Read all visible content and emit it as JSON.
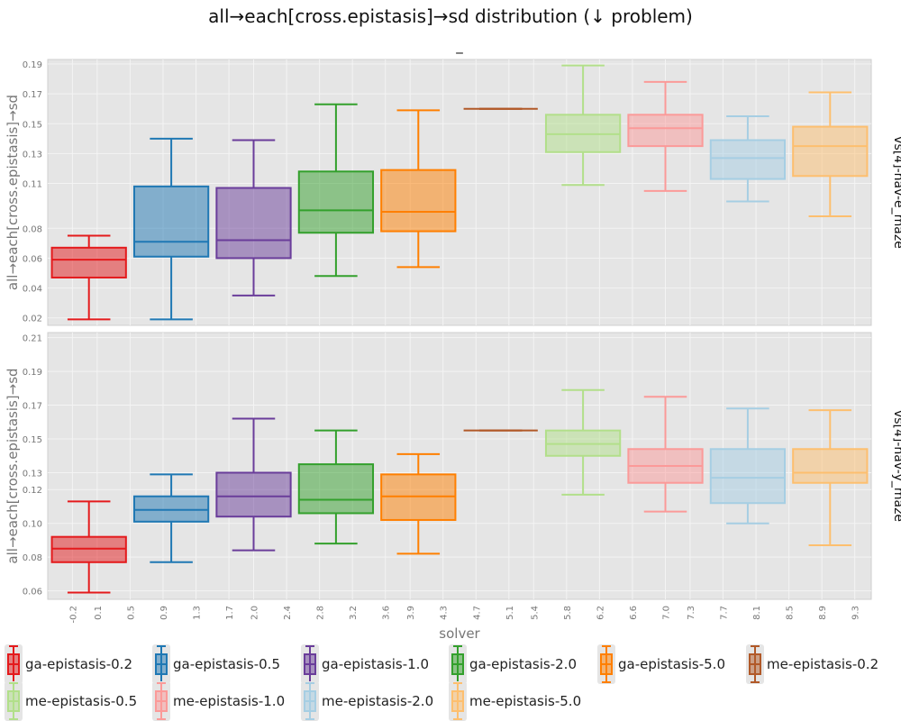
{
  "chart_data": {
    "type": "box",
    "title": "all→each[cross.epistasis]→sd distribution (↓ problem)",
    "subtitle": "_",
    "xlabel": "solver",
    "ylabel": "all→each[cross.epistasis]→sd",
    "x_ticks": [
      "-0.2",
      "0.1",
      "0.5",
      "0.9",
      "1.3",
      "1.7",
      "2.0",
      "2.4",
      "2.8",
      "3.2",
      "3.6",
      "3.9",
      "4.3",
      "4.7",
      "5.1",
      "5.4",
      "5.8",
      "6.2",
      "6.6",
      "7.0",
      "7.3",
      "7.7",
      "8.1",
      "8.5",
      "8.9",
      "9.3"
    ],
    "x_tick_positions": [
      -0.2,
      0.1,
      0.5,
      0.9,
      1.3,
      1.7,
      2.0,
      2.4,
      2.8,
      3.2,
      3.6,
      3.9,
      4.3,
      4.7,
      5.1,
      5.4,
      5.8,
      6.2,
      6.6,
      7.0,
      7.3,
      7.7,
      8.1,
      8.5,
      8.9,
      9.3
    ],
    "xlim": [
      -0.5,
      9.5
    ],
    "grid": true,
    "legend_position": "bottom",
    "series": [
      {
        "name": "ga-epistasis-0.2",
        "color": "#e41a1c"
      },
      {
        "name": "ga-epistasis-0.5",
        "color": "#1f78b4"
      },
      {
        "name": "ga-epistasis-1.0",
        "color": "#6a3d9a"
      },
      {
        "name": "ga-epistasis-2.0",
        "color": "#33a02c"
      },
      {
        "name": "ga-epistasis-5.0",
        "color": "#ff7f00"
      },
      {
        "name": "me-epistasis-0.2",
        "color": "#b15928"
      },
      {
        "name": "me-epistasis-0.5",
        "color": "#b2df8a"
      },
      {
        "name": "me-epistasis-1.0",
        "color": "#fb9a99"
      },
      {
        "name": "me-epistasis-2.0",
        "color": "#a6cee3"
      },
      {
        "name": "me-epistasis-5.0",
        "color": "#fdbf6f"
      }
    ],
    "panels": [
      {
        "facet": "vs[4]-nav-e_maze",
        "ylim": [
          0.015,
          0.193
        ],
        "y_ticks": [
          "0.02",
          "0.04",
          "0.06",
          "0.08",
          "0.11",
          "0.13",
          "0.15",
          "0.17",
          "0.19"
        ],
        "y_tick_values": [
          0.02,
          0.04,
          0.06,
          0.08,
          0.11,
          0.13,
          0.15,
          0.17,
          0.19
        ],
        "boxes": [
          {
            "min": 0.019,
            "q1": 0.047,
            "median": 0.059,
            "q3": 0.067,
            "max": 0.075
          },
          {
            "min": 0.019,
            "q1": 0.061,
            "median": 0.071,
            "q3": 0.108,
            "max": 0.14
          },
          {
            "min": 0.035,
            "q1": 0.06,
            "median": 0.072,
            "q3": 0.107,
            "max": 0.139
          },
          {
            "min": 0.048,
            "q1": 0.077,
            "median": 0.092,
            "q3": 0.118,
            "max": 0.163
          },
          {
            "min": 0.054,
            "q1": 0.078,
            "median": 0.091,
            "q3": 0.119,
            "max": 0.159
          },
          {
            "min": 0.16,
            "q1": 0.16,
            "median": 0.16,
            "q3": 0.16,
            "max": 0.16
          },
          {
            "min": 0.109,
            "q1": 0.131,
            "median": 0.143,
            "q3": 0.156,
            "max": 0.189
          },
          {
            "min": 0.105,
            "q1": 0.135,
            "median": 0.147,
            "q3": 0.156,
            "max": 0.178
          },
          {
            "min": 0.098,
            "q1": 0.113,
            "median": 0.127,
            "q3": 0.139,
            "max": 0.155
          },
          {
            "min": 0.088,
            "q1": 0.115,
            "median": 0.135,
            "q3": 0.148,
            "max": 0.171
          }
        ]
      },
      {
        "facet": "vs[4]-nav-y_maze",
        "ylim": [
          0.055,
          0.213
        ],
        "y_ticks": [
          "0.06",
          "0.08",
          "0.10",
          "0.12",
          "0.13",
          "0.15",
          "0.17",
          "0.19",
          "0.21"
        ],
        "y_tick_values": [
          0.06,
          0.08,
          0.1,
          0.12,
          0.13,
          0.15,
          0.17,
          0.19,
          0.21
        ],
        "boxes": [
          {
            "min": 0.059,
            "q1": 0.077,
            "median": 0.085,
            "q3": 0.092,
            "max": 0.113
          },
          {
            "min": 0.077,
            "q1": 0.101,
            "median": 0.108,
            "q3": 0.116,
            "max": 0.129
          },
          {
            "min": 0.084,
            "q1": 0.104,
            "median": 0.116,
            "q3": 0.13,
            "max": 0.162
          },
          {
            "min": 0.088,
            "q1": 0.106,
            "median": 0.114,
            "q3": 0.135,
            "max": 0.155
          },
          {
            "min": 0.082,
            "q1": 0.102,
            "median": 0.116,
            "q3": 0.129,
            "max": 0.141
          },
          {
            "min": 0.155,
            "q1": 0.155,
            "median": 0.155,
            "q3": 0.155,
            "max": 0.155
          },
          {
            "min": 0.117,
            "q1": 0.14,
            "median": 0.147,
            "q3": 0.155,
            "max": 0.179
          },
          {
            "min": 0.107,
            "q1": 0.124,
            "median": 0.134,
            "q3": 0.144,
            "max": 0.175
          },
          {
            "min": 0.1,
            "q1": 0.112,
            "median": 0.127,
            "q3": 0.144,
            "max": 0.168
          },
          {
            "min": 0.087,
            "q1": 0.124,
            "median": 0.13,
            "q3": 0.144,
            "max": 0.167
          }
        ]
      }
    ]
  }
}
